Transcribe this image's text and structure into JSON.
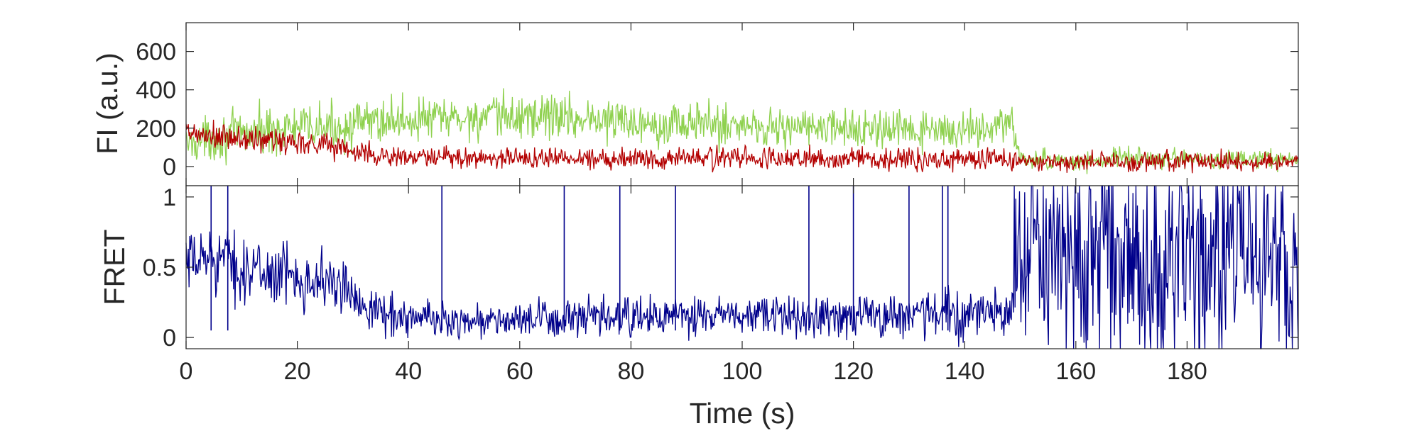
{
  "figure": {
    "xlabel": "Time (s)"
  },
  "chart_data": [
    {
      "type": "line",
      "panel": "top",
      "ylabel": "FI (a.u.)",
      "xlim": [
        0,
        200
      ],
      "ylim": [
        -100,
        750
      ],
      "x_ticks": [
        0,
        20,
        40,
        60,
        80,
        100,
        120,
        140,
        160,
        180
      ],
      "y_ticks": [
        0,
        200,
        400,
        600
      ],
      "x_tick_labels_visible": false,
      "grid": false,
      "colors": {
        "donor": "#8fd14f",
        "acceptor": "#b30000"
      },
      "series": [
        {
          "color_key": "donor",
          "x": [
            0,
            5,
            10,
            15,
            20,
            25,
            30,
            35,
            40,
            45,
            50,
            55,
            60,
            65,
            70,
            75,
            80,
            85,
            90,
            95,
            100,
            105,
            110,
            115,
            120,
            125,
            130,
            135,
            140,
            145,
            148.5,
            150,
            155,
            160,
            165,
            170,
            175,
            180,
            185,
            190,
            195,
            200
          ],
          "y": [
            120,
            150,
            170,
            190,
            200,
            205,
            215,
            240,
            245,
            250,
            250,
            255,
            260,
            270,
            255,
            240,
            235,
            230,
            225,
            220,
            215,
            210,
            205,
            200,
            195,
            190,
            185,
            180,
            190,
            210,
            220,
            40,
            30,
            25,
            30,
            45,
            40,
            35,
            35,
            35,
            35,
            35
          ],
          "noise": [
            70,
            80,
            85,
            90,
            85,
            85,
            80,
            85,
            80,
            80,
            80,
            85,
            95,
            90,
            85,
            80,
            80,
            80,
            80,
            80,
            80,
            80,
            75,
            70,
            70,
            70,
            70,
            65,
            60,
            65,
            70,
            35,
            35,
            35,
            40,
            40,
            40,
            35,
            35,
            35,
            35,
            35
          ]
        },
        {
          "color_key": "acceptor",
          "x": [
            0,
            5,
            10,
            15,
            20,
            25,
            30,
            35,
            40,
            50,
            60,
            70,
            80,
            90,
            100,
            110,
            120,
            130,
            140,
            148.5,
            150,
            160,
            170,
            180,
            190,
            200
          ],
          "y": [
            170,
            150,
            140,
            135,
            130,
            120,
            80,
            55,
            45,
            45,
            45,
            45,
            45,
            45,
            45,
            40,
            40,
            40,
            40,
            40,
            20,
            25,
            30,
            30,
            25,
            25
          ],
          "noise": [
            55,
            55,
            55,
            55,
            50,
            50,
            45,
            40,
            40,
            40,
            40,
            40,
            40,
            40,
            40,
            40,
            40,
            40,
            40,
            40,
            35,
            35,
            35,
            35,
            35,
            35
          ]
        }
      ]
    },
    {
      "type": "line",
      "panel": "bottom",
      "ylabel": "FRET",
      "xlim": [
        0,
        200
      ],
      "ylim": [
        -0.08,
        1.08
      ],
      "x_ticks": [
        0,
        20,
        40,
        60,
        80,
        100,
        120,
        140,
        160,
        180
      ],
      "y_ticks": [
        0,
        0.5,
        1
      ],
      "y_tick_labels": [
        "0",
        "0.5",
        "1"
      ],
      "x_tick_labels": [
        "0",
        "20",
        "40",
        "60",
        "80",
        "100",
        "120",
        "140",
        "160",
        "180"
      ],
      "grid": false,
      "colors": {
        "fret": "#00008b"
      },
      "series": [
        {
          "color_key": "fret",
          "x": [
            0,
            5,
            10,
            15,
            20,
            25,
            30,
            35,
            40,
            50,
            60,
            70,
            80,
            90,
            100,
            110,
            120,
            130,
            140,
            148.5,
            149,
            160,
            170,
            180,
            190,
            200
          ],
          "y": [
            0.5,
            0.6,
            0.48,
            0.46,
            0.44,
            0.4,
            0.3,
            0.18,
            0.14,
            0.12,
            0.12,
            0.13,
            0.14,
            0.15,
            0.15,
            0.15,
            0.16,
            0.17,
            0.17,
            0.18,
            0.55,
            0.55,
            0.55,
            0.55,
            0.55,
            0.55
          ],
          "noise": [
            0.14,
            0.18,
            0.16,
            0.15,
            0.15,
            0.15,
            0.13,
            0.1,
            0.1,
            0.09,
            0.09,
            0.1,
            0.1,
            0.1,
            0.1,
            0.11,
            0.12,
            0.12,
            0.12,
            0.12,
            0.6,
            0.6,
            0.6,
            0.6,
            0.6,
            0.6
          ]
        }
      ],
      "spikes": {
        "x": [
          4.5,
          7.5,
          46,
          68,
          78,
          88,
          112,
          120,
          130,
          136,
          137
        ],
        "y": [
          1.08,
          1.08,
          1.08,
          1.08,
          1.08,
          1.08,
          1.08,
          1.08,
          1.08,
          1.08,
          1.08
        ]
      }
    }
  ]
}
